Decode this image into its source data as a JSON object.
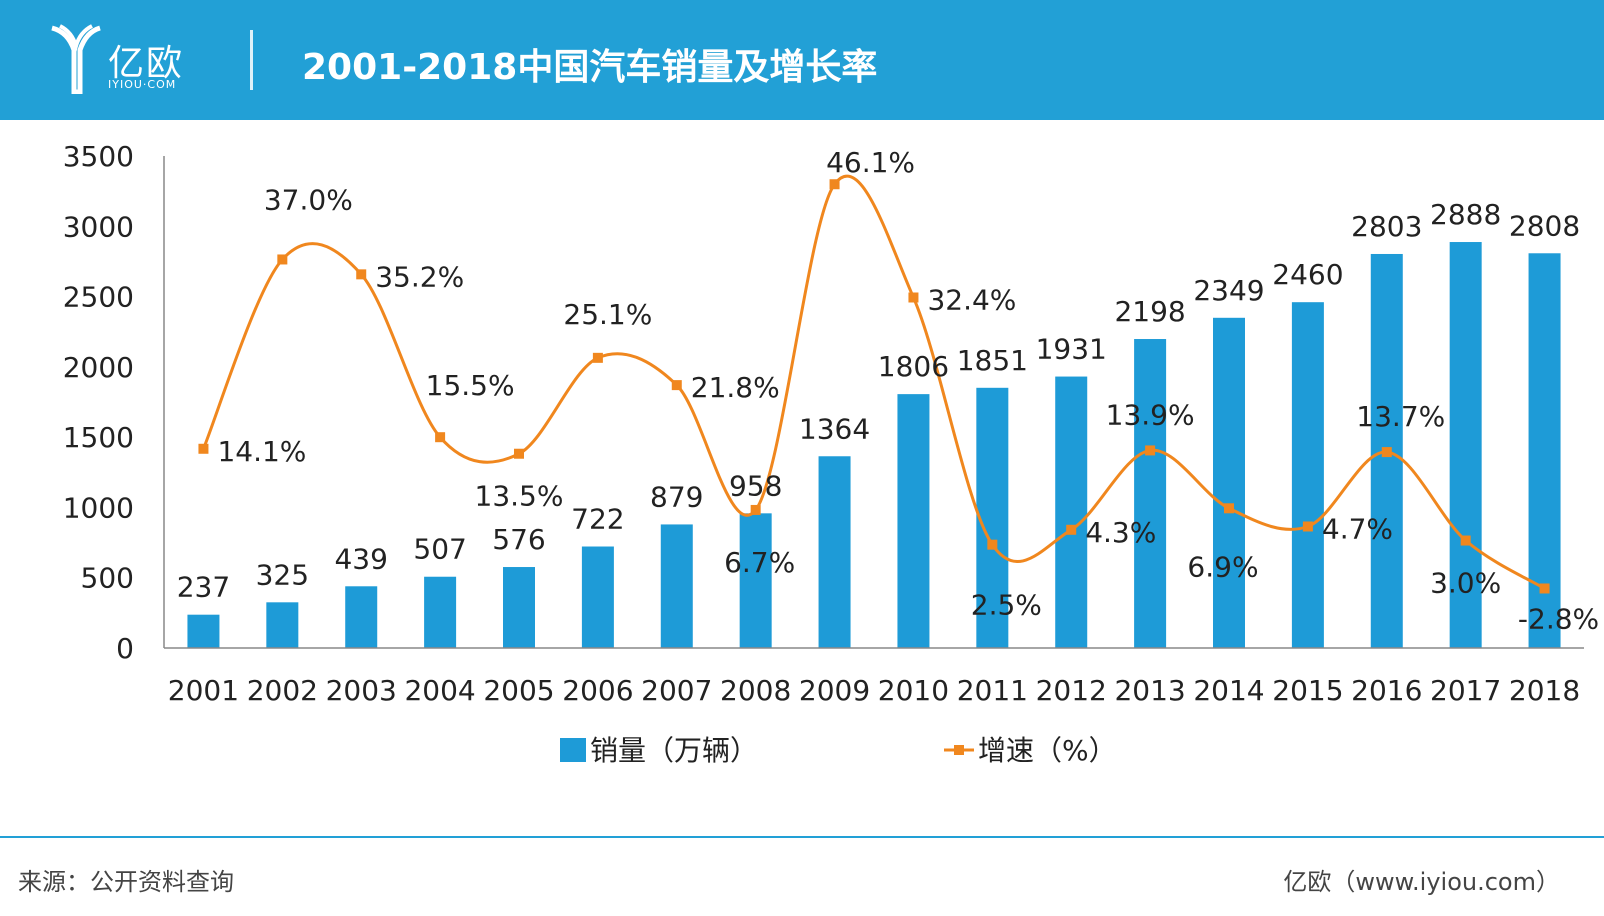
{
  "header": {
    "logo_text": "亿欧",
    "logo_sub": "IYIOU·COM",
    "title": "2001-2018中国汽车销量及增长率"
  },
  "footer": {
    "source": "来源：公开资料查询",
    "brand": "亿欧（www.iyiou.com）"
  },
  "colors": {
    "header_bg": "#22a0d6",
    "bar": "#1e9bd7",
    "line": "#f0871e"
  },
  "chart_data": {
    "type": "bar",
    "title": "2001-2018中国汽车销量及增长率",
    "categories": [
      "2001",
      "2002",
      "2003",
      "2004",
      "2005",
      "2006",
      "2007",
      "2008",
      "2009",
      "2010",
      "2011",
      "2012",
      "2013",
      "2014",
      "2015",
      "2016",
      "2017",
      "2018"
    ],
    "ylim": [
      0,
      3500
    ],
    "yticks": [
      0,
      500,
      1000,
      1500,
      2000,
      2500,
      3000,
      3500
    ],
    "legend_position": "bottom",
    "series": [
      {
        "name": "销量（万辆）",
        "type": "bar",
        "values": [
          237,
          325,
          439,
          507,
          576,
          722,
          879,
          958,
          1364,
          1806,
          1851,
          1931,
          2198,
          2349,
          2460,
          2803,
          2888,
          2808
        ]
      },
      {
        "name": "增速（%）",
        "type": "line",
        "smooth": true,
        "values": [
          14.1,
          37.0,
          35.2,
          15.5,
          13.5,
          25.1,
          21.8,
          6.7,
          46.1,
          32.4,
          2.5,
          4.3,
          13.9,
          6.9,
          4.7,
          13.7,
          3.0,
          -2.8
        ],
        "labels": [
          "14.1%",
          "37.0%",
          "35.2%",
          "15.5%",
          "13.5%",
          "25.1%",
          "21.8%",
          "6.7%",
          "46.1%",
          "32.4%",
          "2.5%",
          "4.3%",
          "13.9%",
          "6.9%",
          "4.7%",
          "13.7%",
          "3.0%",
          "-2.8%"
        ]
      }
    ]
  }
}
